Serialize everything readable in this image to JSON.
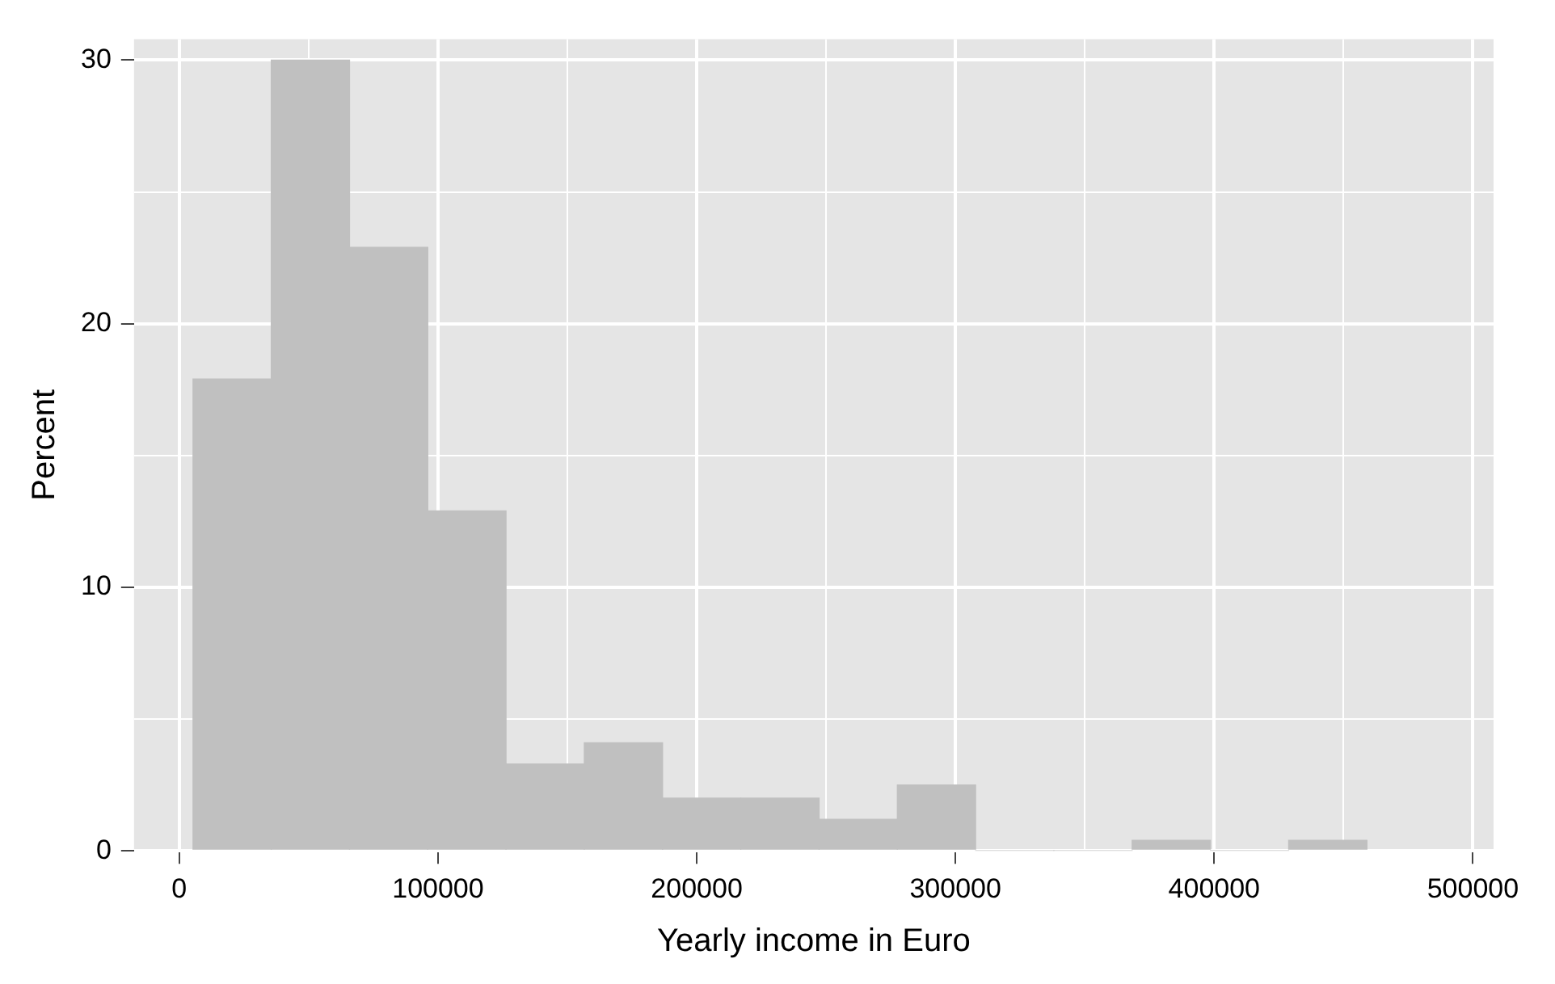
{
  "chart_data": {
    "type": "histogram",
    "xlabel": "Yearly income in Euro",
    "ylabel": "Percent",
    "color": "#c0c0c0",
    "bins": [
      5300,
      35550,
      65800,
      96050,
      126300,
      156550,
      186800,
      217050,
      247300,
      277550,
      307800,
      338050,
      368300,
      398550,
      428800,
      459050
    ],
    "values": [
      17.9,
      30,
      22.9,
      12.9,
      3.3,
      4.1,
      2.0,
      2.0,
      1.2,
      2.5,
      0,
      0,
      0.4,
      0,
      0.4
    ],
    "xlim": [
      -17500,
      508000
    ],
    "xticks": [
      0,
      {
        "value": 50000,
        "label": null
      },
      100000,
      {
        "value": 150000,
        "label": null
      },
      200000,
      {
        "value": 250000,
        "label": null
      },
      300000,
      {
        "value": 350000,
        "label": null
      },
      400000,
      {
        "value": 450000,
        "label": null
      },
      500000
    ],
    "ylim": [
      0,
      30.8
    ],
    "yticks": [
      0,
      {
        "value": 5,
        "label": null
      },
      10,
      {
        "value": 15,
        "label": null
      },
      20,
      {
        "value": 25,
        "label": null
      },
      30
    ],
    "grid": true
  }
}
